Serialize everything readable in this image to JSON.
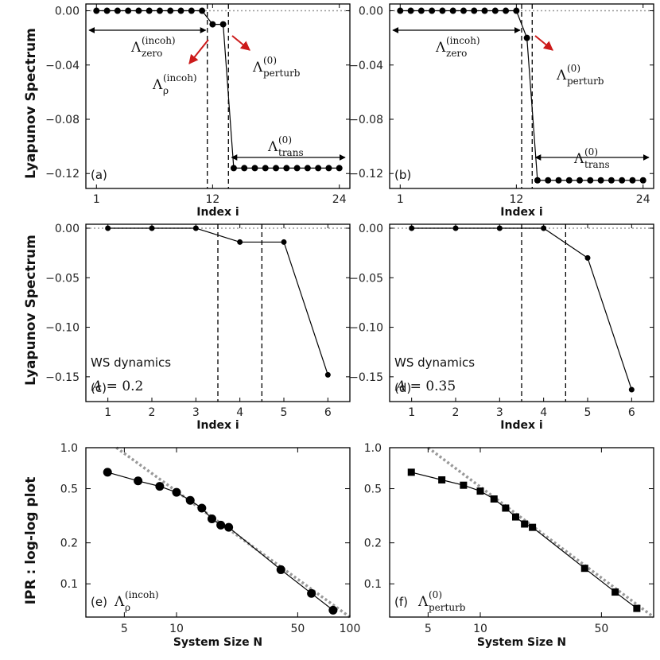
{
  "colors": {
    "line": "#000000",
    "ref_dotted": "#999999",
    "red_arrow": "#cc1a1a"
  },
  "row_titles": {
    "top": "Lyapunov Spectrum",
    "middle": "Lyapunov Spectrum",
    "bottom": "IPR : log-log plot"
  },
  "chart_data": [
    {
      "panel": "a",
      "type": "line",
      "label": "(a)",
      "xlabel": "Index i",
      "xticks": [
        "1",
        "12",
        "24"
      ],
      "yticks": [
        "0.00",
        "-0.04",
        "-0.08",
        "-0.12"
      ],
      "xlim": [
        0,
        25
      ],
      "ylim": [
        -0.131,
        0.005
      ],
      "x": [
        1,
        2,
        3,
        4,
        5,
        6,
        7,
        8,
        9,
        10,
        11,
        12,
        13,
        14,
        15,
        16,
        17,
        18,
        19,
        20,
        21,
        22,
        23,
        24
      ],
      "y": [
        0,
        0,
        0,
        0,
        0,
        0,
        0,
        0,
        0,
        0,
        0,
        -0.01,
        -0.01,
        -0.116,
        -0.116,
        -0.116,
        -0.116,
        -0.116,
        -0.116,
        -0.116,
        -0.116,
        -0.116,
        -0.116,
        -0.116
      ],
      "vlines": [
        11.5,
        13.5
      ],
      "annotations": {
        "zero": {
          "base": "Λ",
          "sub": "zero",
          "sup": "(incoh)"
        },
        "rho": {
          "base": "Λ",
          "sub": "ρ",
          "sup": "(incoh)"
        },
        "perturb": {
          "base": "Λ",
          "sub": "perturb",
          "sup": "(0)"
        },
        "trans": {
          "base": "Λ",
          "sub": "trans",
          "sup": "(0)"
        }
      }
    },
    {
      "panel": "b",
      "type": "line",
      "label": "(b)",
      "xlabel": "Index i",
      "xticks": [
        "1",
        "12",
        "24"
      ],
      "yticks": [
        "0.00",
        "-0.04",
        "-0.08",
        "-0.12"
      ],
      "xlim": [
        0,
        25
      ],
      "ylim": [
        -0.131,
        0.005
      ],
      "x": [
        1,
        2,
        3,
        4,
        5,
        6,
        7,
        8,
        9,
        10,
        11,
        12,
        13,
        14,
        15,
        16,
        17,
        18,
        19,
        20,
        21,
        22,
        23,
        24
      ],
      "y": [
        0,
        0,
        0,
        0,
        0,
        0,
        0,
        0,
        0,
        0,
        0,
        0,
        -0.02,
        -0.125,
        -0.125,
        -0.125,
        -0.125,
        -0.125,
        -0.125,
        -0.125,
        -0.125,
        -0.125,
        -0.125,
        -0.125
      ],
      "vlines": [
        12.5,
        13.5
      ],
      "annotations": {
        "zero": {
          "base": "Λ",
          "sub": "zero",
          "sup": "(incoh)"
        },
        "perturb": {
          "base": "Λ",
          "sub": "perturb",
          "sup": "(0)"
        },
        "trans": {
          "base": "Λ",
          "sub": "trans",
          "sup": "(0)"
        }
      }
    },
    {
      "panel": "c",
      "type": "line",
      "label": "(c)",
      "xlabel": "Index i",
      "xticks": [
        "1",
        "2",
        "3",
        "4",
        "5",
        "6"
      ],
      "yticks": [
        "0.00",
        "-0.05",
        "-0.10",
        "-0.15"
      ],
      "xlim": [
        0.5,
        6.5
      ],
      "ylim": [
        -0.175,
        0.004
      ],
      "x": [
        1,
        2,
        3,
        4,
        5,
        6
      ],
      "y": [
        0,
        0,
        0,
        -0.014,
        -0.014,
        -0.148
      ],
      "vlines": [
        3.5,
        4.5
      ],
      "text1": "WS dynamics",
      "text2_var": "A",
      "text2_val": " = 0.2"
    },
    {
      "panel": "d",
      "type": "line",
      "label": "(d)",
      "xlabel": "Index i",
      "xticks": [
        "1",
        "2",
        "3",
        "4",
        "5",
        "6"
      ],
      "yticks": [
        "0.00",
        "-0.05",
        "-0.10",
        "-0.15"
      ],
      "xlim": [
        0.5,
        6.5
      ],
      "ylim": [
        -0.175,
        0.004
      ],
      "x": [
        1,
        2,
        3,
        4,
        5,
        6
      ],
      "y": [
        0,
        0,
        0,
        0,
        -0.03,
        -0.163
      ],
      "vlines": [
        3.5,
        4.5
      ],
      "text1": "WS dynamics",
      "text2_var": "A",
      "text2_val": " = 0.35"
    },
    {
      "panel": "e",
      "type": "scatter",
      "label": "(e)",
      "scale": "log-log",
      "marker": "circle",
      "xlabel": "System Size N",
      "xticks": [
        "5",
        "10",
        "50",
        "100"
      ],
      "yticks": [
        "1.0",
        "0.5",
        "0.2",
        "0.1"
      ],
      "xlim": [
        3,
        100
      ],
      "ylim": [
        0.057,
        1.0
      ],
      "x": [
        4,
        6,
        8,
        10,
        12,
        14,
        16,
        18,
        20,
        40,
        60,
        80
      ],
      "y": [
        0.66,
        0.57,
        0.52,
        0.47,
        0.41,
        0.36,
        0.3,
        0.27,
        0.26,
        0.127,
        0.085,
        0.064
      ],
      "fit_line": {
        "x": [
          4.5,
          100
        ],
        "y": [
          1.0,
          0.057
        ]
      },
      "annotation": {
        "base": "Λ",
        "sub": "ρ",
        "sup": "(incoh)"
      }
    },
    {
      "panel": "f",
      "type": "scatter",
      "label": "(f)",
      "scale": "log-log",
      "marker": "square",
      "xlabel": "System Size N",
      "xticks": [
        "5",
        "10",
        "50"
      ],
      "yticks": [
        "1.0",
        "0.5",
        "0.2",
        "0.1"
      ],
      "xlim": [
        3,
        100
      ],
      "ylim": [
        0.057,
        1.0
      ],
      "x": [
        4,
        6,
        8,
        10,
        12,
        14,
        16,
        18,
        20,
        40,
        60,
        80
      ],
      "y": [
        0.66,
        0.58,
        0.53,
        0.48,
        0.42,
        0.36,
        0.31,
        0.275,
        0.26,
        0.13,
        0.087,
        0.066
      ],
      "fit_line": {
        "x": [
          5,
          100
        ],
        "y": [
          1.0,
          0.057
        ]
      },
      "annotation": {
        "base": "Λ",
        "sub": "perturb",
        "sup": "(0)"
      }
    }
  ]
}
